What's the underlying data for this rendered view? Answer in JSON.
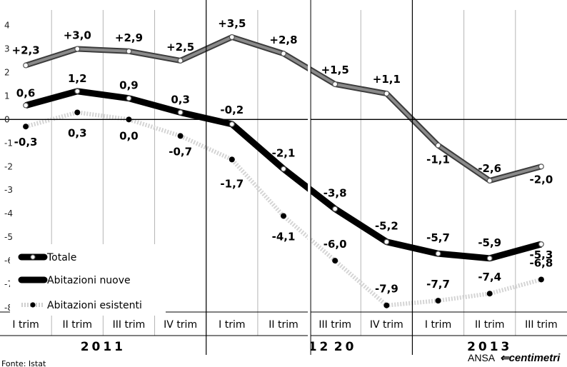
{
  "chart_data": {
    "type": "line",
    "categories": [
      "I trim",
      "II trim",
      "III trim",
      "IV trim",
      "I trim",
      "II trim",
      "III trim",
      "IV trim",
      "I trim",
      "II trim",
      "III trim"
    ],
    "years": [
      {
        "label": "2011"
      },
      {
        "label": "20"
      },
      {
        "label": "12"
      },
      {
        "label": "2013"
      }
    ],
    "ylim": [
      -8,
      4
    ],
    "yticks": [
      4,
      3,
      2,
      1,
      0,
      -1,
      -2,
      -3,
      -4,
      -5,
      -6,
      -7,
      -8
    ],
    "series": [
      {
        "name": "Totale",
        "values": [
          0.6,
          1.2,
          0.9,
          0.3,
          -0.2,
          -2.1,
          -3.8,
          -5.2,
          -5.7,
          -5.9,
          -5.3
        ],
        "labels": [
          "0,6",
          "1,2",
          "0,9",
          "0,3",
          "-0,2",
          "-2,1",
          "-3,8",
          "-5,2",
          "-5,7",
          "-5,9",
          "-5,3"
        ]
      },
      {
        "name": "Abitazioni nuove",
        "values": [
          2.3,
          3.0,
          2.9,
          2.5,
          3.5,
          2.8,
          1.5,
          1.1,
          -1.1,
          -2.6,
          -2.0
        ],
        "labels": [
          "+2,3",
          "+3,0",
          "+2,9",
          "+2,5",
          "+3,5",
          "+2,8",
          "+1,5",
          "+1,1",
          "-1,1",
          "-2,6",
          "-2,0"
        ]
      },
      {
        "name": "Abitazioni esistenti",
        "values": [
          -0.3,
          0.3,
          0.0,
          -0.7,
          -1.7,
          -4.1,
          -6.0,
          -7.9,
          -7.7,
          -7.4,
          -6.8
        ],
        "labels": [
          "-0,3",
          "0,3",
          "0,0",
          "-0,7",
          "-1,7",
          "-4,1",
          "-6,0",
          "-7,9",
          "-7,7",
          "-7,4",
          "-6,8"
        ]
      }
    ],
    "legend": [
      {
        "name": "Totale"
      },
      {
        "name": "Abitazioni nuove"
      },
      {
        "name": "Abitazioni esistenti"
      }
    ],
    "grid": true
  },
  "source": "Fonte: Istat",
  "credit": {
    "agency": "ANSA",
    "brand": "centimetri"
  }
}
